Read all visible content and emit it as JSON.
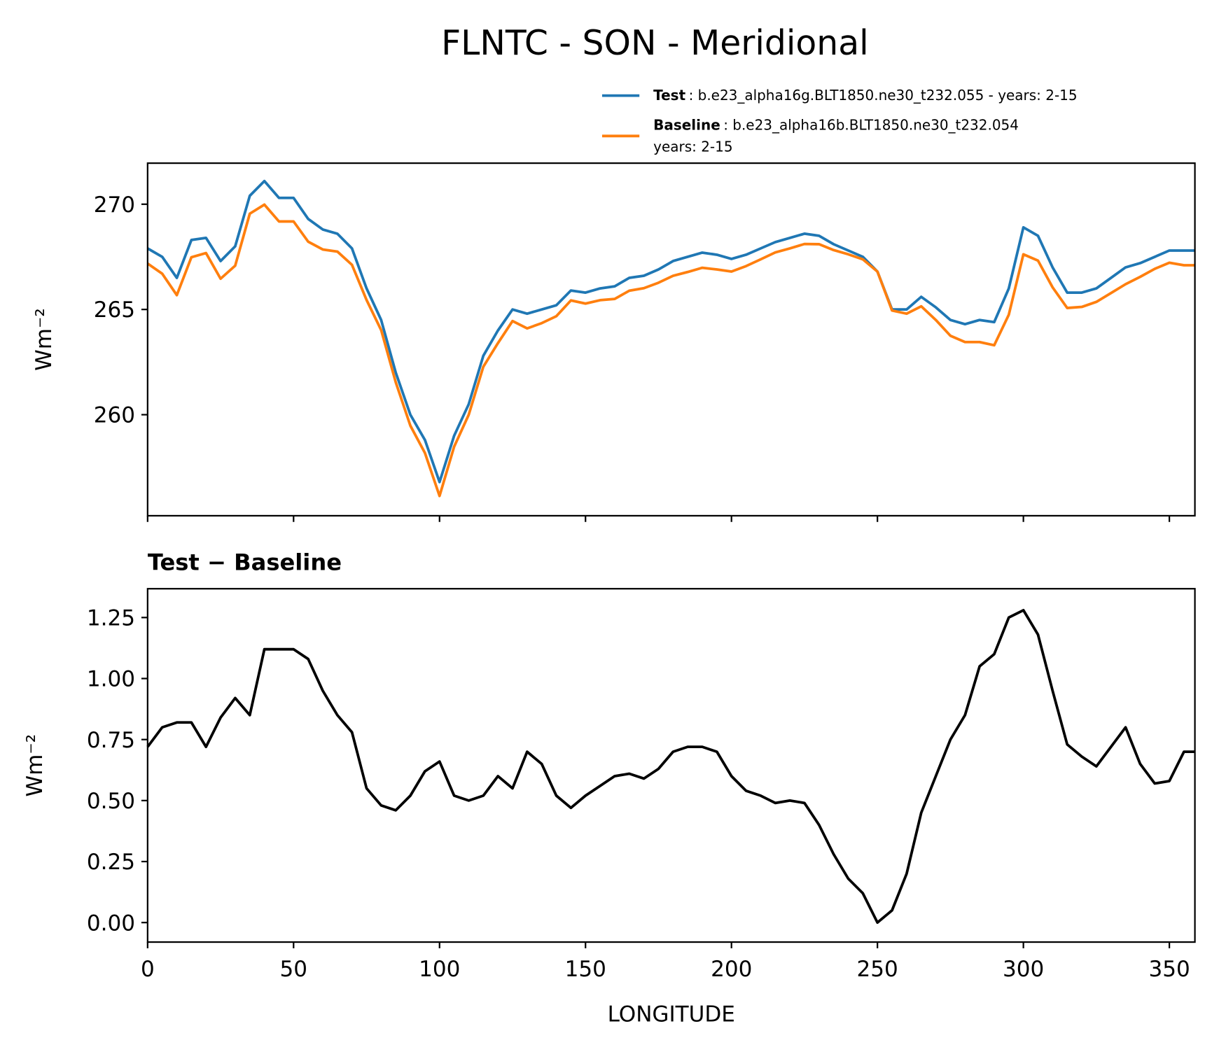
{
  "chart_data": [
    {
      "type": "line",
      "title": "FLNTC - SON - Meridional",
      "ylabel": "Wm⁻²",
      "x": [
        0,
        5,
        10,
        15,
        20,
        25,
        30,
        35,
        40,
        45,
        50,
        55,
        60,
        65,
        70,
        75,
        80,
        85,
        90,
        95,
        100,
        105,
        110,
        115,
        120,
        125,
        130,
        135,
        140,
        145,
        150,
        155,
        160,
        165,
        170,
        175,
        180,
        185,
        190,
        195,
        200,
        205,
        210,
        215,
        220,
        225,
        230,
        235,
        240,
        245,
        250,
        255,
        260,
        265,
        270,
        275,
        280,
        285,
        290,
        295,
        300,
        305,
        310,
        315,
        320,
        325,
        330,
        335,
        340,
        345,
        350,
        355,
        358.75
      ],
      "xlim": [
        0,
        358.75
      ],
      "xticks": [
        0,
        50,
        100,
        150,
        200,
        250,
        300,
        350
      ],
      "ylim": [
        255.2,
        271.95
      ],
      "yticks": [
        260,
        265,
        270
      ],
      "series": [
        {
          "name": "Test",
          "label": [
            ": b.e23_alpha16g.BLT1850.ne30_t232.055 - years: 2-15"
          ],
          "color": "#1f77b4",
          "values": [
            267.9,
            267.5,
            266.5,
            268.3,
            268.4,
            267.3,
            268.0,
            270.4,
            271.1,
            270.3,
            270.3,
            269.3,
            268.8,
            268.6,
            267.9,
            266.0,
            264.5,
            262.0,
            260.0,
            258.8,
            256.8,
            259.0,
            260.5,
            262.8,
            264.0,
            265.0,
            264.8,
            265.0,
            265.2,
            265.9,
            265.8,
            266.0,
            266.1,
            266.5,
            266.6,
            266.9,
            267.3,
            267.5,
            267.7,
            267.6,
            267.4,
            267.6,
            267.9,
            268.2,
            268.4,
            268.6,
            268.5,
            268.1,
            267.8,
            267.5,
            266.8,
            265.0,
            265.0,
            265.6,
            265.1,
            264.5,
            264.3,
            264.5,
            264.4,
            266.0,
            268.9,
            268.5,
            267.0,
            265.8,
            265.8,
            266.0,
            266.5,
            267.0,
            267.2,
            267.5,
            267.8,
            267.8,
            267.8
          ]
        },
        {
          "name": "Baseline",
          "label": [
            ": b.e23_alpha16b.BLT1850.ne30_t232.054",
            "years: 2-15"
          ],
          "color": "#ff7f0e",
          "values": [
            267.18,
            266.7,
            265.68,
            267.48,
            267.68,
            266.46,
            267.08,
            269.55,
            269.98,
            269.18,
            269.18,
            268.22,
            267.85,
            267.75,
            267.12,
            265.45,
            264.02,
            261.54,
            259.48,
            258.18,
            256.14,
            258.48,
            260.0,
            262.28,
            263.4,
            264.45,
            264.1,
            264.35,
            264.68,
            265.43,
            265.28,
            265.44,
            265.5,
            265.89,
            266.01,
            266.27,
            266.6,
            266.78,
            266.98,
            266.9,
            266.8,
            267.06,
            267.38,
            267.71,
            267.9,
            268.11,
            268.1,
            267.82,
            267.62,
            267.38,
            266.8,
            264.95,
            264.8,
            265.15,
            264.5,
            263.75,
            263.45,
            263.45,
            263.3,
            264.75,
            267.62,
            267.32,
            266.05,
            265.07,
            265.12,
            265.36,
            265.78,
            266.2,
            266.55,
            266.93,
            267.22,
            267.1,
            267.1
          ]
        }
      ]
    },
    {
      "type": "line",
      "title": "Test − Baseline",
      "ylabel": "Wm⁻²",
      "xlabel": "LONGITUDE",
      "x": [
        0,
        5,
        10,
        15,
        20,
        25,
        30,
        35,
        40,
        45,
        50,
        55,
        60,
        65,
        70,
        75,
        80,
        85,
        90,
        95,
        100,
        105,
        110,
        115,
        120,
        125,
        130,
        135,
        140,
        145,
        150,
        155,
        160,
        165,
        170,
        175,
        180,
        185,
        190,
        195,
        200,
        205,
        210,
        215,
        220,
        225,
        230,
        235,
        240,
        245,
        250,
        255,
        260,
        265,
        270,
        275,
        280,
        285,
        290,
        295,
        300,
        305,
        310,
        315,
        320,
        325,
        330,
        335,
        340,
        345,
        350,
        355,
        358.75
      ],
      "xlim": [
        0,
        358.75
      ],
      "xticks": [
        0,
        50,
        100,
        150,
        200,
        250,
        300,
        350
      ],
      "ylim": [
        -0.08,
        1.368
      ],
      "yticks": [
        {
          "value": 0,
          "label": "0.00"
        },
        0.25,
        {
          "value": 0.5,
          "label": "0.50"
        },
        0.75,
        {
          "value": 1,
          "label": "1.00"
        },
        1.25
      ],
      "color": "#000000",
      "values": [
        0.72,
        0.8,
        0.82,
        0.82,
        0.72,
        0.84,
        0.92,
        0.85,
        1.12,
        1.12,
        1.12,
        1.08,
        0.95,
        0.85,
        0.78,
        0.55,
        0.48,
        0.46,
        0.52,
        0.62,
        0.66,
        0.52,
        0.5,
        0.52,
        0.6,
        0.55,
        0.7,
        0.65,
        0.52,
        0.47,
        0.52,
        0.56,
        0.6,
        0.61,
        0.59,
        0.63,
        0.7,
        0.72,
        0.72,
        0.7,
        0.6,
        0.54,
        0.52,
        0.49,
        0.5,
        0.49,
        0.4,
        0.28,
        0.18,
        0.12,
        0.0,
        0.05,
        0.2,
        0.45,
        0.6,
        0.75,
        0.85,
        1.05,
        1.1,
        1.25,
        1.28,
        1.18,
        0.95,
        0.73,
        0.68,
        0.64,
        0.72,
        0.8,
        0.65,
        0.57,
        0.58,
        0.7,
        0.7
      ]
    }
  ]
}
